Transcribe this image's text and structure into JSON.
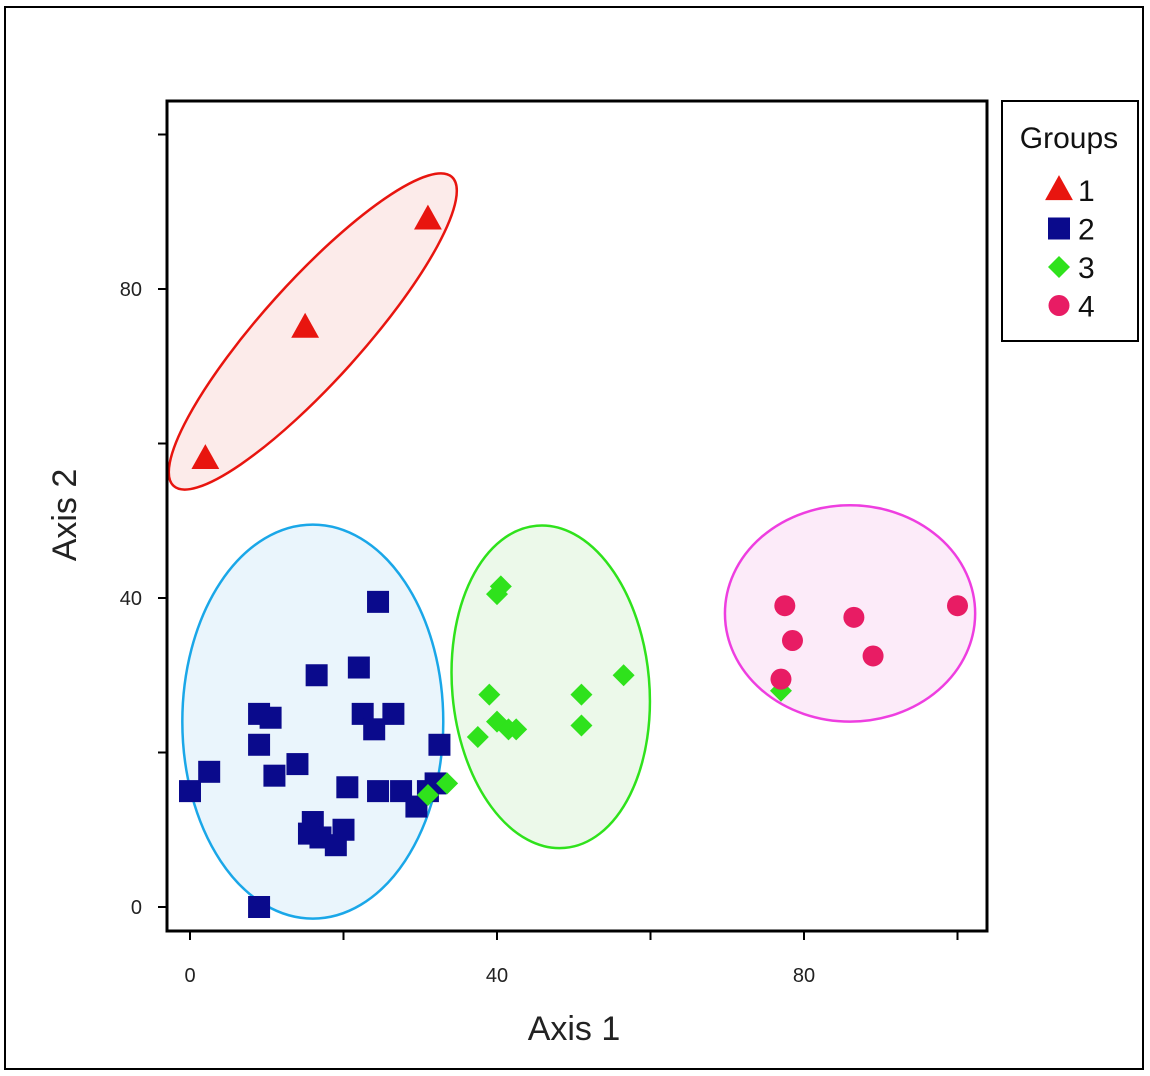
{
  "chart_data": {
    "type": "scatter",
    "title": "",
    "xlabel": "Axis 1",
    "ylabel": "Axis 2",
    "xlim": [
      -3,
      104
    ],
    "ylim": [
      -3,
      105
    ],
    "x_ticks": [
      0,
      40,
      80
    ],
    "x_minor_ticks": [
      20,
      60,
      100
    ],
    "y_ticks": [
      0,
      40,
      80
    ],
    "y_minor_ticks": [
      20,
      60,
      100
    ],
    "grid": false,
    "legend": {
      "title": "Groups",
      "position": "right"
    },
    "series": [
      {
        "name": "1",
        "marker": "triangle",
        "color": "#e8150f",
        "ellipse_fill": "#fcebea",
        "ellipse_stroke": "#e8150f",
        "points": [
          [
            2,
            58
          ],
          [
            15,
            75
          ],
          [
            31,
            89
          ]
        ],
        "ellipse": {
          "cx": 16,
          "cy": 74.5,
          "rx": 27,
          "ry": 6.5,
          "angle": 48
        }
      },
      {
        "name": "2",
        "marker": "square",
        "color": "#0a0a8c",
        "ellipse_fill": "#eaf5fc",
        "ellipse_stroke": "#1aa7e8",
        "points": [
          [
            0,
            15
          ],
          [
            2.5,
            17.5
          ],
          [
            9,
            25
          ],
          [
            9,
            21
          ],
          [
            10.5,
            24.5
          ],
          [
            11,
            17
          ],
          [
            14,
            18.5
          ],
          [
            16.5,
            30
          ],
          [
            16,
            11
          ],
          [
            15.5,
            9.5
          ],
          [
            17,
            9
          ],
          [
            19,
            8
          ],
          [
            20,
            10
          ],
          [
            20.5,
            15.5
          ],
          [
            22,
            31
          ],
          [
            22.5,
            25
          ],
          [
            24,
            23
          ],
          [
            24.5,
            39.5
          ],
          [
            26.5,
            25
          ],
          [
            24.5,
            15
          ],
          [
            27.5,
            15
          ],
          [
            29.5,
            13
          ],
          [
            31,
            15
          ],
          [
            32,
            16
          ],
          [
            32.5,
            21
          ],
          [
            9,
            0
          ]
        ],
        "ellipse": {
          "cx": 16,
          "cy": 24,
          "rx": 17,
          "ry": 25.5,
          "angle": 0
        }
      },
      {
        "name": "3",
        "marker": "diamond",
        "color": "#2fe21c",
        "ellipse_fill": "#ecf9ea",
        "ellipse_stroke": "#2fe21c",
        "points": [
          [
            31,
            14.5
          ],
          [
            33.5,
            16
          ],
          [
            37.5,
            22
          ],
          [
            39,
            27.5
          ],
          [
            40,
            24
          ],
          [
            40,
            40.5
          ],
          [
            40.5,
            41.5
          ],
          [
            41.5,
            23
          ],
          [
            42.5,
            23
          ],
          [
            51,
            27.5
          ],
          [
            51,
            23.5
          ],
          [
            56.5,
            30
          ],
          [
            77,
            28
          ]
        ],
        "ellipse": {
          "cx": 47,
          "cy": 28.5,
          "rx": 12.8,
          "ry": 21,
          "angle": 5
        }
      },
      {
        "name": "4",
        "marker": "circle",
        "color": "#e81c64",
        "ellipse_fill": "#fcebf9",
        "ellipse_stroke": "#ee3ee0",
        "points": [
          [
            77.5,
            39
          ],
          [
            78.5,
            34.5
          ],
          [
            77,
            29.5
          ],
          [
            86.5,
            37.5
          ],
          [
            89,
            32.5
          ],
          [
            100,
            39
          ]
        ],
        "ellipse": {
          "cx": 86,
          "cy": 38,
          "rx": 16.3,
          "ry": 14,
          "angle": 0
        }
      }
    ]
  }
}
